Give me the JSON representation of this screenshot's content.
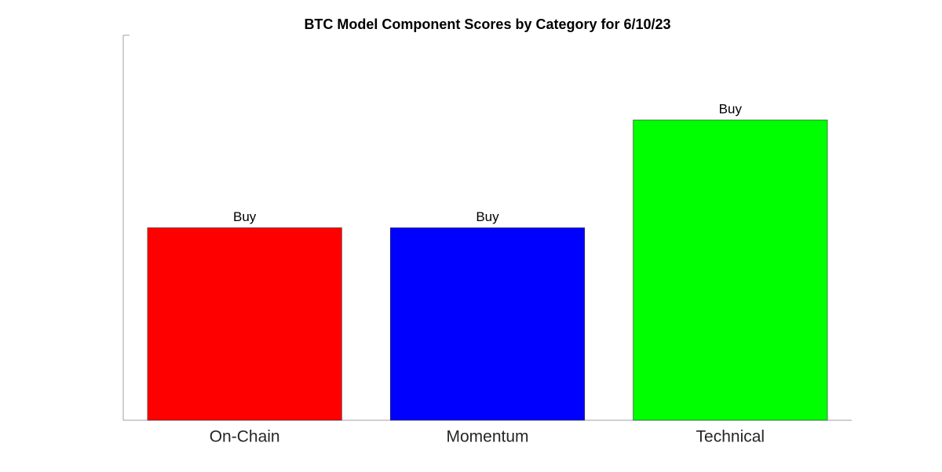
{
  "chart_data": {
    "type": "bar",
    "title": "BTC Model Component Scores by Category for 6/10/23",
    "categories": [
      "On-Chain",
      "Momentum",
      "Technical"
    ],
    "values": [
      0.5,
      0.5,
      0.78
    ],
    "value_labels": [
      "Buy",
      "Buy",
      "Buy"
    ],
    "colors": [
      "#ff0000",
      "#0000ff",
      "#00ff00"
    ],
    "ylim": [
      0,
      1
    ]
  }
}
